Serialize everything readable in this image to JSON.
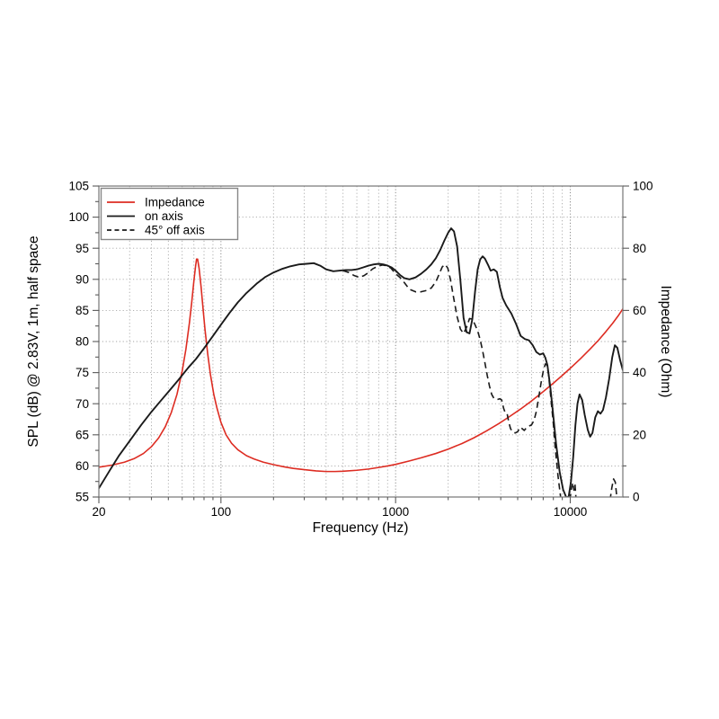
{
  "figure": {
    "background": "#ffffff",
    "frame_color": "#7f7f7f",
    "grid_minor_color": "#a6a6a6",
    "grid_major_color": "#8c8c8c",
    "tick_color": "#5a5a5a",
    "spl_color": "#1a1a1a",
    "impedance_color": "#dd2c22"
  },
  "legend": {
    "items": [
      {
        "label": "Impedance",
        "color": "#dd2c22",
        "style": "solid"
      },
      {
        "label": "on axis",
        "color": "#1a1a1a",
        "style": "solid"
      },
      {
        "label": "45° off axis",
        "color": "#1a1a1a",
        "style": "dashed"
      }
    ]
  },
  "chart_data": {
    "type": "line",
    "title": "",
    "xlabel": "Frequency (Hz)",
    "ylabel_left": "SPL (dB) @ 2.83V, 1m, half space",
    "ylabel_right": "Impedance (Ohm)",
    "x_scale": "log",
    "xlim": [
      20,
      20000
    ],
    "ylim_left": [
      55,
      105
    ],
    "ylim_right": [
      0,
      100
    ],
    "grid": "dotted",
    "legend_position": "upper-left",
    "x_major_ticks": [
      20,
      100,
      1000,
      10000
    ],
    "x_major_tick_labels": [
      "20",
      "100",
      "1000",
      "10000"
    ],
    "y_left_ticks": [
      55,
      60,
      65,
      70,
      75,
      80,
      85,
      90,
      95,
      100,
      105
    ],
    "y_right_ticks": [
      0,
      20,
      40,
      60,
      80,
      100
    ],
    "series": [
      {
        "name": "Impedance",
        "axis": "right",
        "unit": "Ohm",
        "color": "#dd2c22",
        "style": "solid",
        "points": [
          [
            20,
            9.6
          ],
          [
            24,
            10.3
          ],
          [
            28,
            11.2
          ],
          [
            32,
            12.4
          ],
          [
            36,
            14.0
          ],
          [
            40,
            16.2
          ],
          [
            44,
            19.0
          ],
          [
            48,
            22.6
          ],
          [
            52,
            27.2
          ],
          [
            56,
            33.0
          ],
          [
            60,
            40.5
          ],
          [
            63,
            47.5
          ],
          [
            66,
            56.0
          ],
          [
            68,
            62.5
          ],
          [
            70,
            69.5
          ],
          [
            71.5,
            74.0
          ],
          [
            72.5,
            76.5
          ],
          [
            73.5,
            76.5
          ],
          [
            75,
            73.5
          ],
          [
            77,
            67.5
          ],
          [
            79,
            60.5
          ],
          [
            81,
            54.0
          ],
          [
            84,
            46.0
          ],
          [
            87,
            39.5
          ],
          [
            91,
            33.0
          ],
          [
            95,
            28.5
          ],
          [
            100,
            24.0
          ],
          [
            107,
            20.0
          ],
          [
            115,
            17.3
          ],
          [
            125,
            15.2
          ],
          [
            140,
            13.3
          ],
          [
            155,
            12.2
          ],
          [
            175,
            11.2
          ],
          [
            200,
            10.4
          ],
          [
            230,
            9.7
          ],
          [
            260,
            9.2
          ],
          [
            300,
            8.8
          ],
          [
            350,
            8.4
          ],
          [
            400,
            8.2
          ],
          [
            450,
            8.2
          ],
          [
            500,
            8.3
          ],
          [
            600,
            8.6
          ],
          [
            700,
            9.0
          ],
          [
            800,
            9.5
          ],
          [
            900,
            10.0
          ],
          [
            1000,
            10.5
          ],
          [
            1200,
            11.6
          ],
          [
            1400,
            12.6
          ],
          [
            1700,
            14.0
          ],
          [
            2000,
            15.4
          ],
          [
            2400,
            17.2
          ],
          [
            2800,
            19.0
          ],
          [
            3300,
            21.2
          ],
          [
            3900,
            23.6
          ],
          [
            4500,
            25.9
          ],
          [
            5200,
            28.3
          ],
          [
            6000,
            30.9
          ],
          [
            7000,
            33.9
          ],
          [
            8000,
            36.6
          ],
          [
            9000,
            39.1
          ],
          [
            10000,
            41.4
          ],
          [
            11500,
            44.6
          ],
          [
            13000,
            47.6
          ],
          [
            14500,
            50.4
          ],
          [
            16000,
            53.2
          ],
          [
            17500,
            55.9
          ],
          [
            19000,
            58.6
          ],
          [
            20000,
            60.5
          ]
        ]
      },
      {
        "name": "on axis",
        "axis": "left",
        "unit": "dB",
        "color": "#1a1a1a",
        "style": "solid",
        "points": [
          [
            20,
            56.4
          ],
          [
            23,
            59.2
          ],
          [
            26,
            61.6
          ],
          [
            30,
            64.0
          ],
          [
            35,
            66.6
          ],
          [
            40,
            68.7
          ],
          [
            45,
            70.4
          ],
          [
            50,
            71.9
          ],
          [
            57,
            73.8
          ],
          [
            65,
            75.8
          ],
          [
            72,
            77.2
          ],
          [
            80,
            78.9
          ],
          [
            90,
            80.9
          ],
          [
            100,
            82.7
          ],
          [
            112,
            84.6
          ],
          [
            125,
            86.3
          ],
          [
            140,
            87.8
          ],
          [
            160,
            89.3
          ],
          [
            180,
            90.4
          ],
          [
            200,
            91.1
          ],
          [
            225,
            91.7
          ],
          [
            250,
            92.1
          ],
          [
            280,
            92.4
          ],
          [
            310,
            92.5
          ],
          [
            340,
            92.6
          ],
          [
            370,
            92.2
          ],
          [
            400,
            91.6
          ],
          [
            440,
            91.3
          ],
          [
            480,
            91.4
          ],
          [
            520,
            91.5
          ],
          [
            560,
            91.5
          ],
          [
            600,
            91.6
          ],
          [
            650,
            91.9
          ],
          [
            700,
            92.2
          ],
          [
            750,
            92.4
          ],
          [
            800,
            92.5
          ],
          [
            850,
            92.4
          ],
          [
            900,
            92.2
          ],
          [
            950,
            91.9
          ],
          [
            1000,
            91.4
          ],
          [
            1060,
            90.7
          ],
          [
            1120,
            90.2
          ],
          [
            1200,
            90.0
          ],
          [
            1300,
            90.3
          ],
          [
            1400,
            90.9
          ],
          [
            1500,
            91.6
          ],
          [
            1600,
            92.4
          ],
          [
            1700,
            93.4
          ],
          [
            1800,
            94.7
          ],
          [
            1900,
            96.2
          ],
          [
            2000,
            97.5
          ],
          [
            2080,
            98.2
          ],
          [
            2160,
            97.7
          ],
          [
            2250,
            95.3
          ],
          [
            2350,
            89.8
          ],
          [
            2450,
            83.8
          ],
          [
            2550,
            81.5
          ],
          [
            2650,
            81.3
          ],
          [
            2750,
            83.6
          ],
          [
            2850,
            88.0
          ],
          [
            2950,
            91.6
          ],
          [
            3050,
            93.2
          ],
          [
            3150,
            93.7
          ],
          [
            3250,
            93.3
          ],
          [
            3400,
            92.2
          ],
          [
            3500,
            91.4
          ],
          [
            3650,
            91.6
          ],
          [
            3800,
            91.2
          ],
          [
            3950,
            88.8
          ],
          [
            4100,
            87.0
          ],
          [
            4300,
            85.8
          ],
          [
            4600,
            84.5
          ],
          [
            4900,
            82.8
          ],
          [
            5200,
            80.9
          ],
          [
            5500,
            80.4
          ],
          [
            5800,
            80.2
          ],
          [
            6100,
            79.4
          ],
          [
            6400,
            78.3
          ],
          [
            6700,
            77.9
          ],
          [
            7000,
            78.1
          ],
          [
            7200,
            77.4
          ],
          [
            7400,
            76.2
          ],
          [
            7700,
            72.5
          ],
          [
            8000,
            68.0
          ],
          [
            8300,
            63.5
          ],
          [
            8700,
            59.0
          ],
          [
            9100,
            56.2
          ],
          [
            9500,
            54.9
          ],
          [
            9800,
            55.1
          ],
          [
            10100,
            57.5
          ],
          [
            10400,
            61.5
          ],
          [
            10700,
            66.5
          ],
          [
            11000,
            70.0
          ],
          [
            11300,
            71.5
          ],
          [
            11700,
            70.6
          ],
          [
            12100,
            68.2
          ],
          [
            12600,
            65.8
          ],
          [
            13000,
            64.7
          ],
          [
            13400,
            65.3
          ],
          [
            13900,
            67.8
          ],
          [
            14400,
            68.8
          ],
          [
            14900,
            68.4
          ],
          [
            15400,
            69.0
          ],
          [
            16000,
            71.0
          ],
          [
            16700,
            74.0
          ],
          [
            17400,
            77.5
          ],
          [
            18000,
            79.4
          ],
          [
            18600,
            79.0
          ],
          [
            19300,
            77.0
          ],
          [
            20000,
            75.4
          ]
        ]
      },
      {
        "name": "45° off axis",
        "axis": "left",
        "unit": "dB",
        "color": "#1a1a1a",
        "style": "dashed",
        "segments": [
          [
            [
              500,
              91.4
            ],
            [
              540,
              91.1
            ],
            [
              580,
              90.6
            ],
            [
              620,
              90.3
            ],
            [
              660,
              90.6
            ],
            [
              700,
              91.1
            ],
            [
              740,
              91.7
            ],
            [
              790,
              92.1
            ],
            [
              840,
              92.3
            ],
            [
              890,
              92.2
            ],
            [
              940,
              91.8
            ],
            [
              1000,
              90.9
            ],
            [
              1060,
              90.3
            ],
            [
              1120,
              89.5
            ],
            [
              1200,
              88.4
            ],
            [
              1300,
              88.0
            ],
            [
              1400,
              88.0
            ],
            [
              1500,
              88.2
            ],
            [
              1600,
              88.6
            ],
            [
              1700,
              89.6
            ],
            [
              1780,
              90.9
            ],
            [
              1850,
              92.0
            ],
            [
              1920,
              92.4
            ],
            [
              1990,
              91.8
            ],
            [
              2060,
              90.0
            ],
            [
              2150,
              87.0
            ],
            [
              2250,
              84.0
            ],
            [
              2350,
              82.0
            ],
            [
              2450,
              81.3
            ],
            [
              2550,
              82.3
            ],
            [
              2650,
              83.7
            ],
            [
              2750,
              83.6
            ],
            [
              2850,
              82.7
            ],
            [
              2950,
              81.7
            ],
            [
              3050,
              80.3
            ],
            [
              3150,
              78.5
            ],
            [
              3250,
              76.5
            ],
            [
              3350,
              74.5
            ],
            [
              3450,
              72.8
            ],
            [
              3550,
              71.5
            ],
            [
              3650,
              70.9
            ],
            [
              3750,
              70.7
            ],
            [
              3850,
              70.7
            ],
            [
              3950,
              70.8
            ],
            [
              4050,
              70.6
            ],
            [
              4150,
              69.3
            ],
            [
              4250,
              68.5
            ],
            [
              4350,
              68.4
            ],
            [
              4450,
              67.0
            ],
            [
              4550,
              66.0
            ],
            [
              4700,
              65.4
            ],
            [
              4850,
              65.3
            ],
            [
              5000,
              65.5
            ],
            [
              5150,
              66.2
            ],
            [
              5300,
              66.0
            ],
            [
              5450,
              65.7
            ],
            [
              5600,
              66.1
            ],
            [
              5800,
              66.4
            ],
            [
              6000,
              66.6
            ],
            [
              6200,
              67.3
            ],
            [
              6400,
              68.8
            ],
            [
              6600,
              71.0
            ],
            [
              6800,
              73.3
            ],
            [
              7000,
              75.2
            ],
            [
              7200,
              76.4
            ],
            [
              7350,
              76.2
            ],
            [
              7500,
              74.8
            ],
            [
              7650,
              72.5
            ],
            [
              7800,
              70.0
            ],
            [
              8000,
              66.8
            ],
            [
              8200,
              63.0
            ],
            [
              8500,
              58.5
            ],
            [
              8850,
              54.5
            ]
          ],
          [
            [
              9950,
              54.5
            ],
            [
              10150,
              56.3
            ],
            [
              10350,
              57.3
            ],
            [
              10500,
              56.1
            ],
            [
              10650,
              57.0
            ],
            [
              10800,
              54.5
            ]
          ],
          [
            [
              16900,
              54.5
            ],
            [
              17300,
              56.5
            ],
            [
              17700,
              57.9
            ],
            [
              18100,
              57.4
            ],
            [
              18400,
              55.5
            ],
            [
              18600,
              54.5
            ]
          ]
        ]
      }
    ]
  }
}
